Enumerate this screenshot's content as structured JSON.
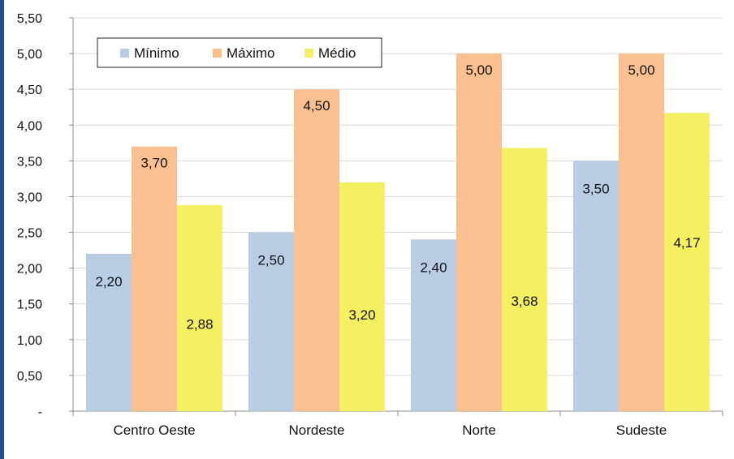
{
  "chart_data": {
    "type": "bar",
    "categories": [
      "Centro Oeste",
      "Nordeste",
      "Norte",
      "Sudeste"
    ],
    "series": [
      {
        "name": "Mínimo",
        "values": [
          2.2,
          2.5,
          2.4,
          3.5
        ],
        "labels": [
          "2,20",
          "2,50",
          "2,40",
          "3,50"
        ],
        "color": "#b8cce4"
      },
      {
        "name": "Máximo",
        "values": [
          3.7,
          4.5,
          5.0,
          5.0
        ],
        "labels": [
          "3,70",
          "4,50",
          "5,00",
          "5,00"
        ],
        "color": "#fac090"
      },
      {
        "name": "Médio",
        "values": [
          2.88,
          3.2,
          3.68,
          4.17
        ],
        "labels": [
          "2,88",
          "3,20",
          "3,68",
          "4,17"
        ],
        "color": "#f5f062"
      }
    ],
    "ylim": [
      0,
      5.5
    ],
    "yticks": [
      0,
      0.5,
      1.0,
      1.5,
      2.0,
      2.5,
      3.0,
      3.5,
      4.0,
      4.5,
      5.0,
      5.5
    ],
    "ytick_labels": [
      "-",
      "0,50",
      "1,00",
      "1,50",
      "2,00",
      "2,50",
      "3,00",
      "3,50",
      "4,00",
      "4,50",
      "5,00",
      "5,50"
    ],
    "grid": true,
    "legend_position": "top-left"
  },
  "colors": {
    "frame_border": "#1f4e8c",
    "gridline": "#d9d9d9",
    "axis": "#8c8c8c"
  }
}
